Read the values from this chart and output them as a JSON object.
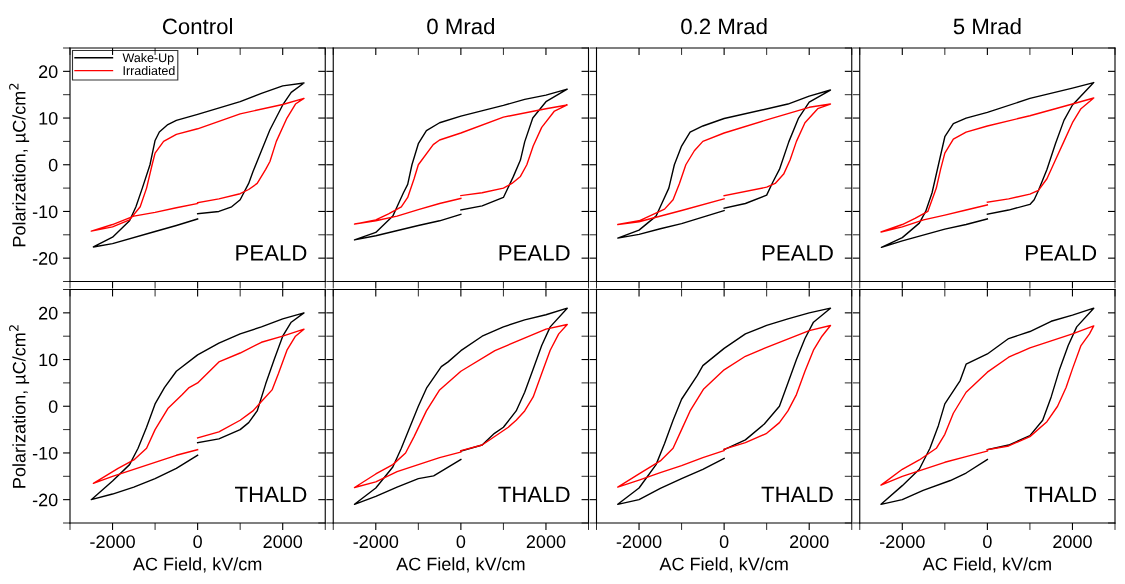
{
  "chart_data": [
    {
      "type": "line",
      "title": "Control",
      "ylabel": "Polarization, µC/cm$^{2}$",
      "annotations": [
        "PEALD"
      ],
      "legend": "top left",
      "tick_labels": "y",
      "xlim": [
        -3000,
        3000
      ],
      "ylim": [
        -25,
        25
      ],
      "xticks": [
        -2000,
        0,
        2000
      ],
      "yticks": [
        -20,
        -10,
        0,
        10,
        20
      ],
      "series": [
        {
          "name": "Wake-Up",
          "color": "#000000",
          "x": [
            0,
            500,
            800,
            1000,
            1200,
            1300,
            1500,
            1700,
            2000,
            2200,
            2500,
            2000,
            1500,
            1000,
            0,
            -500,
            -700,
            -900,
            -1000,
            -1120,
            -1300,
            -1450,
            -1600,
            -2000,
            -2450,
            -2000,
            -1000,
            -500,
            0
          ],
          "values": [
            -10.5,
            -10,
            -9,
            -7.5,
            -4,
            -1.5,
            3,
            7.5,
            12.8,
            15.5,
            17.5,
            16.9,
            15.3,
            13.5,
            10.8,
            9.5,
            8.6,
            7,
            5.2,
            0,
            -5,
            -9,
            -12,
            -15.5,
            -17.6,
            -16.9,
            -14.3,
            -13,
            -11.6
          ]
        },
        {
          "name": "Irradiated",
          "color": "#ff0000",
          "x": [
            0,
            500,
            1000,
            1200,
            1400,
            1600,
            1700,
            1850,
            2100,
            2300,
            2500,
            2000,
            1000,
            0,
            -500,
            -800,
            -1000,
            -1070,
            -1200,
            -1350,
            -1600,
            -2000,
            -2500,
            -2000,
            -1500,
            -1000,
            -500,
            0
          ],
          "values": [
            -8.1,
            -7.3,
            -6.2,
            -5.3,
            -4,
            -1,
            0.7,
            5,
            10,
            13,
            14.2,
            12.9,
            10.9,
            7.7,
            6.5,
            5,
            2.5,
            0,
            -5,
            -9,
            -11.8,
            -13.3,
            -14.2,
            -12.8,
            -11,
            -10.2,
            -9.2,
            -8.3
          ]
        }
      ]
    },
    {
      "type": "line",
      "title": "0 Mrad",
      "annotations": [
        "PEALD"
      ],
      "tick_labels": false,
      "xlim": [
        -3000,
        3000
      ],
      "ylim": [
        -25,
        25
      ],
      "xticks": [
        -2000,
        0,
        2000
      ],
      "yticks": [
        -20,
        -10,
        0,
        10,
        20
      ],
      "series": [
        {
          "color": "#000000",
          "x": [
            0,
            500,
            1000,
            1230,
            1400,
            1500,
            1690,
            2000,
            2500,
            2000,
            1500,
            1000,
            0,
            -500,
            -810,
            -1000,
            -1150,
            -1250,
            -1350,
            -1500,
            -1600,
            -2000,
            -2500,
            -2000,
            -1000,
            -500,
            0
          ],
          "values": [
            -9.7,
            -8.8,
            -7,
            -2.6,
            1,
            4.9,
            10,
            13.5,
            16.2,
            14.9,
            14,
            12.7,
            10.4,
            9,
            7.3,
            4.5,
            0,
            -4.2,
            -6,
            -9,
            -11,
            -14.5,
            -16.1,
            -15.2,
            -13,
            -12,
            -10.6
          ]
        },
        {
          "color": "#ff0000",
          "x": [
            0,
            500,
            1000,
            1200,
            1400,
            1550,
            1700,
            1900,
            2200,
            2500,
            2000,
            1000,
            0,
            -500,
            -650,
            -1000,
            -1100,
            -1250,
            -1400,
            -1700,
            -2000,
            -2500,
            -2000,
            -1500,
            -1000,
            -500,
            0
          ],
          "values": [
            -6.6,
            -6,
            -5,
            -4,
            -2.5,
            0,
            4,
            8,
            11.5,
            12.8,
            12,
            10.2,
            6.8,
            5.3,
            4.3,
            0,
            -3,
            -7,
            -9,
            -10.5,
            -11.8,
            -12.7,
            -12,
            -11,
            -9.6,
            -8.3,
            -7.2
          ]
        }
      ]
    },
    {
      "type": "line",
      "title": "0.2 Mrad",
      "annotations": [
        "PEALD"
      ],
      "tick_labels": false,
      "xlim": [
        -3000,
        3000
      ],
      "ylim": [
        -25,
        25
      ],
      "xticks": [
        -2000,
        0,
        2000
      ],
      "yticks": [
        -20,
        -10,
        0,
        10,
        20
      ],
      "series": [
        {
          "color": "#000000",
          "x": [
            0,
            500,
            1000,
            1140,
            1300,
            1520,
            1750,
            2000,
            2500,
            2000,
            1500,
            0,
            -500,
            -800,
            -1000,
            -1170,
            -1300,
            -1500,
            -1600,
            -2000,
            -2500,
            -2000,
            -1500,
            -1000,
            0
          ],
          "values": [
            -9.3,
            -8.3,
            -6.5,
            -3.8,
            -1,
            4.9,
            10,
            13.4,
            16,
            14.7,
            13,
            9.9,
            8.3,
            7,
            4,
            0,
            -5,
            -9,
            -11,
            -14,
            -15.7,
            -14.9,
            -13.7,
            -12.6,
            -9.8
          ]
        },
        {
          "color": "#ff0000",
          "x": [
            0,
            1000,
            1200,
            1400,
            1550,
            1700,
            1900,
            2200,
            2500,
            2000,
            1000,
            0,
            -500,
            -700,
            -900,
            -1050,
            -1200,
            -1400,
            -2000,
            -2500,
            -2000,
            -1000,
            0
          ],
          "values": [
            -6.6,
            -4.8,
            -4,
            -2,
            1,
            5,
            9,
            12,
            13,
            12.3,
            9.6,
            6.8,
            5,
            3,
            0,
            -4,
            -7.5,
            -9.5,
            -12,
            -12.8,
            -12.2,
            -9.8,
            -7.3
          ]
        }
      ]
    },
    {
      "type": "line",
      "title": "5 Mrad",
      "annotations": [
        "PEALD"
      ],
      "tick_labels": false,
      "xlim": [
        -3000,
        3000
      ],
      "ylim": [
        -25,
        25
      ],
      "xticks": [
        -2000,
        0,
        2000
      ],
      "yticks": [
        -20,
        -10,
        0,
        10,
        20
      ],
      "series": [
        {
          "color": "#000000",
          "x": [
            0,
            500,
            1000,
            1100,
            1200,
            1400,
            1600,
            1800,
            2000,
            2500,
            2000,
            1000,
            0,
            -500,
            -800,
            -1000,
            -1150,
            -1300,
            -1450,
            -1600,
            -2000,
            -2490,
            -2000,
            -1000,
            -500,
            0
          ],
          "values": [
            -10.6,
            -9.7,
            -8.5,
            -7.5,
            -5.5,
            -1,
            4.5,
            9.5,
            12.8,
            17.6,
            16.4,
            14.2,
            11.2,
            10,
            8.8,
            6,
            0,
            -6,
            -10,
            -12.5,
            -15.6,
            -17.7,
            -16.3,
            -13.8,
            -12.8,
            -11.6
          ]
        },
        {
          "color": "#ff0000",
          "x": [
            0,
            500,
            1000,
            1200,
            1400,
            1600,
            1800,
            2000,
            2200,
            2500,
            2000,
            1000,
            0,
            -500,
            -800,
            -1000,
            -1100,
            -1200,
            -1400,
            -1700,
            -2000,
            -2500,
            -2000,
            -1500,
            -1000,
            -500,
            0
          ],
          "values": [
            -8,
            -7.3,
            -6.3,
            -5.5,
            -3,
            1,
            5,
            9,
            12,
            14.3,
            13,
            10.5,
            8.3,
            7,
            5.5,
            2.5,
            -1,
            -5,
            -10,
            -11.5,
            -12.8,
            -14.4,
            -13.3,
            -11.8,
            -10.8,
            -9.7,
            -8.6
          ]
        }
      ]
    },
    {
      "type": "line",
      "xlabel": "AC Field, kV/cm",
      "ylabel": "Polarization, µC/cm$^{2}$",
      "annotations": [
        "THALD"
      ],
      "xlim": [
        -3000,
        3000
      ],
      "ylim": [
        -25,
        25
      ],
      "xticks": [
        -2000,
        0,
        2000
      ],
      "yticks": [
        -20,
        -10,
        0,
        10,
        20
      ],
      "series": [
        {
          "color": "#000000",
          "x": [
            0,
            500,
            1000,
            1200,
            1400,
            1600,
            1800,
            2000,
            2200,
            2500,
            2000,
            1500,
            1000,
            500,
            0,
            -500,
            -780,
            -1000,
            -1200,
            -1400,
            -1600,
            -2000,
            -2500,
            -2000,
            -1500,
            -1000,
            -500,
            0
          ],
          "values": [
            -7.8,
            -7,
            -5,
            -3.5,
            -1,
            4.8,
            10,
            15,
            18,
            20,
            18.7,
            17,
            15.5,
            13.5,
            11,
            7.5,
            4,
            0.5,
            -4.5,
            -9,
            -12.5,
            -16,
            -20,
            -18.8,
            -17.3,
            -15.5,
            -13.3,
            -10.5
          ]
        },
        {
          "color": "#ff0000",
          "x": [
            0,
            500,
            1000,
            1300,
            1500,
            1750,
            1900,
            2100,
            2300,
            2500,
            2000,
            1500,
            1000,
            500,
            0,
            -200,
            -360,
            -700,
            -1000,
            -1200,
            -1500,
            -1870,
            -2450,
            -2000,
            -1500,
            -1000,
            -500,
            0
          ],
          "values": [
            -6.8,
            -5.5,
            -3,
            -1,
            1,
            3.5,
            7,
            12,
            15,
            16.5,
            15,
            13.7,
            11.4,
            9.5,
            5,
            4,
            2.5,
            -0.5,
            -5,
            -9,
            -11.5,
            -13.3,
            -16.5,
            -15,
            -13.5,
            -12,
            -10.5,
            -9.3
          ]
        }
      ]
    },
    {
      "type": "line",
      "xlabel": "AC Field, kV/cm",
      "annotations": [
        "THALD"
      ],
      "tick_labels": "x",
      "xlim": [
        -3000,
        3000
      ],
      "ylim": [
        -25,
        25
      ],
      "xticks": [
        -2000,
        0,
        2000
      ],
      "yticks": [
        -20,
        -10,
        0,
        10,
        20
      ],
      "series": [
        {
          "color": "#000000",
          "x": [
            0,
            500,
            790,
            1000,
            1300,
            1500,
            1700,
            1900,
            2100,
            2500,
            2000,
            1500,
            1000,
            500,
            0,
            -300,
            -460,
            -800,
            -1000,
            -1200,
            -1400,
            -1600,
            -2000,
            -2500,
            -2000,
            -1500,
            -1000,
            -640,
            0
          ],
          "values": [
            -9.6,
            -8.3,
            -5.8,
            -4.5,
            -1,
            3,
            8,
            13,
            17,
            21,
            19.6,
            18.5,
            17,
            15,
            11.9,
            9.5,
            8.5,
            4,
            0,
            -4.5,
            -9,
            -13,
            -17.5,
            -21,
            -19.3,
            -17.3,
            -15.5,
            -14.9,
            -11.4
          ]
        },
        {
          "color": "#ff0000",
          "x": [
            0,
            500,
            1115,
            1300,
            1500,
            1700,
            1900,
            2100,
            2300,
            2500,
            2000,
            1080,
            800,
            0,
            -500,
            -810,
            -1100,
            -1300,
            -1600,
            -2000,
            -2500,
            -2000,
            -1500,
            -1000,
            -500,
            0
          ],
          "values": [
            -9.5,
            -8.3,
            -4.5,
            -3,
            -1,
            2,
            7,
            12,
            15.5,
            17.5,
            16.5,
            13,
            11.9,
            7.5,
            3.5,
            -1,
            -6.5,
            -10,
            -12.5,
            -14.5,
            -17.4,
            -16.2,
            -14,
            -12.5,
            -11,
            -9.8
          ]
        }
      ]
    },
    {
      "type": "line",
      "xlabel": "AC Field, kV/cm",
      "annotations": [
        "THALD"
      ],
      "tick_labels": "x",
      "xlim": [
        -3000,
        3000
      ],
      "ylim": [
        -25,
        25
      ],
      "xticks": [
        -2000,
        0,
        2000
      ],
      "yticks": [
        -20,
        -10,
        0,
        10,
        20
      ],
      "series": [
        {
          "color": "#000000",
          "x": [
            0,
            500,
            945,
            1300,
            1500,
            1700,
            1900,
            2100,
            2500,
            2000,
            1500,
            1000,
            500,
            0,
            -500,
            -630,
            -1000,
            -1200,
            -1400,
            -1600,
            -2000,
            -2500,
            -2000,
            -1500,
            -1000,
            -500,
            0
          ],
          "values": [
            -9.3,
            -7.2,
            -3.8,
            0,
            5,
            10,
            14.5,
            18,
            21,
            20,
            18.7,
            17.3,
            15.5,
            12.4,
            8.7,
            6.6,
            1.5,
            -3,
            -8,
            -12.5,
            -17.5,
            -21,
            -20,
            -17.6,
            -15.5,
            -13.5,
            -11.2
          ]
        },
        {
          "color": "#ff0000",
          "x": [
            0,
            500,
            1000,
            1300,
            1500,
            1700,
            1900,
            2100,
            2300,
            2500,
            2000,
            1000,
            500,
            0,
            -480,
            -800,
            -1000,
            -1200,
            -1500,
            -2000,
            -2500,
            -2000,
            -1500,
            -1000,
            -500,
            0
          ],
          "values": [
            -9.2,
            -7.8,
            -5.8,
            -3.5,
            -1,
            2.5,
            7.5,
            12,
            15,
            17.3,
            16.2,
            12.6,
            10.7,
            7.8,
            3.7,
            -1,
            -5,
            -9,
            -11.7,
            -14.5,
            -17.3,
            -15.8,
            -14.2,
            -12.7,
            -11,
            -9.5
          ]
        }
      ]
    },
    {
      "type": "line",
      "xlabel": "AC Field, kV/cm",
      "annotations": [
        "THALD"
      ],
      "tick_labels": "x",
      "xlim": [
        -3000,
        3000
      ],
      "ylim": [
        -25,
        25
      ],
      "xticks": [
        -2000,
        0,
        2000
      ],
      "yticks": [
        -20,
        -10,
        0,
        10,
        20
      ],
      "series": [
        {
          "color": "#000000",
          "x": [
            0,
            500,
            1000,
            1300,
            1500,
            1700,
            1900,
            2100,
            2500,
            2000,
            1500,
            1000,
            500,
            0,
            -500,
            -640,
            -1000,
            -1150,
            -1350,
            -1600,
            -2000,
            -2500,
            -2000,
            -1510,
            -870,
            -500,
            0
          ],
          "values": [
            -9.3,
            -8.3,
            -6.3,
            -3,
            2,
            8,
            13,
            17,
            21,
            19.5,
            18.2,
            16,
            14.5,
            11.2,
            9,
            5.5,
            0.5,
            -4.1,
            -9,
            -13.5,
            -17,
            -21,
            -20,
            -18,
            -15.9,
            -14.3,
            -11.4
          ]
        },
        {
          "color": "#ff0000",
          "x": [
            0,
            500,
            1000,
            1400,
            1650,
            1850,
            2000,
            2200,
            2400,
            2500,
            2000,
            1500,
            1000,
            500,
            0,
            -500,
            -800,
            -1000,
            -1200,
            -1600,
            -2000,
            -2500,
            -2000,
            -1500,
            -1000,
            -500,
            0
          ],
          "values": [
            -9.3,
            -8.5,
            -6.5,
            -3.3,
            0,
            4,
            8,
            13,
            15.5,
            17.2,
            15.5,
            14,
            12.5,
            10.5,
            7.3,
            3,
            -1.5,
            -6,
            -9,
            -11.5,
            -13.5,
            -16.9,
            -15,
            -13.5,
            -12,
            -10.8,
            -9.6
          ]
        }
      ]
    }
  ]
}
